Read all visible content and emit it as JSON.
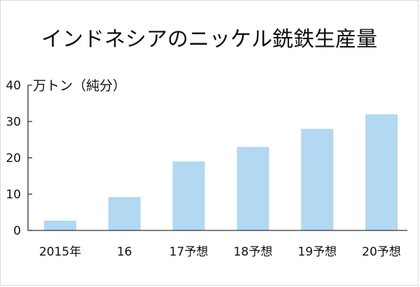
{
  "chart_data": {
    "type": "bar",
    "title": "インドネシアのニッケル銑鉄生産量",
    "ylabel": "万トン（純分）",
    "xlabel": "",
    "categories": [
      "2015年",
      "16",
      "17予想",
      "18予想",
      "19予想",
      "20予想"
    ],
    "values": [
      2.7,
      9.2,
      19.0,
      23.0,
      28.0,
      32.0
    ],
    "ylim": [
      0,
      40
    ],
    "yticks": [
      0,
      10,
      20,
      30,
      40
    ],
    "grid": false,
    "bar_color": "#b3d8f2",
    "axis_color": "#333333"
  }
}
